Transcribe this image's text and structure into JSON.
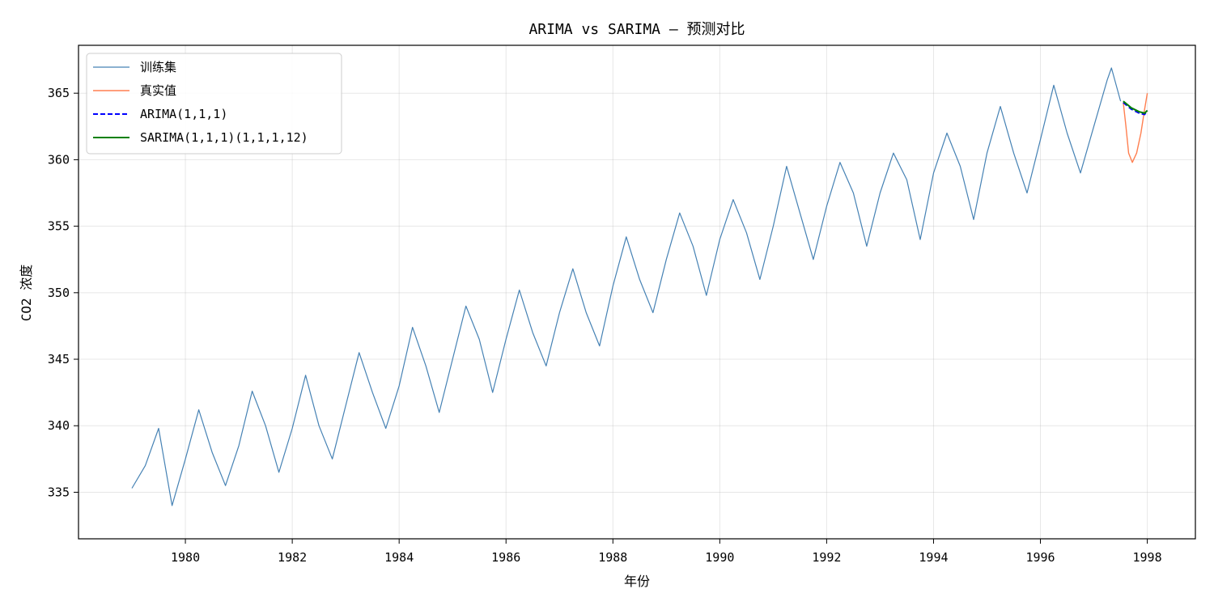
{
  "chart_data": {
    "type": "line",
    "title": "ARIMA vs SARIMA — 预测对比",
    "xlabel": "年份",
    "ylabel": "CO2 浓度",
    "xlim": [
      1978.0,
      1998.9
    ],
    "ylim": [
      331.5,
      368.6
    ],
    "xticks": [
      1980,
      1982,
      1984,
      1986,
      1988,
      1990,
      1992,
      1994,
      1996,
      1998
    ],
    "xtick_labels": [
      "1980",
      "1982",
      "1984",
      "1986",
      "1988",
      "1990",
      "1992",
      "1994",
      "1996",
      "1998"
    ],
    "yticks": [
      335,
      340,
      345,
      350,
      355,
      360,
      365
    ],
    "ytick_labels": [
      "335",
      "340",
      "345",
      "350",
      "355",
      "360",
      "365"
    ],
    "grid": true,
    "legend_position": "top-left",
    "x_unit": "year",
    "series": [
      {
        "name": "训练集",
        "color": "#4682b4",
        "style": "solid",
        "x": [
          1979.0,
          1979.25,
          1979.5,
          1979.75,
          1980.0,
          1980.25,
          1980.5,
          1980.75,
          1981.0,
          1981.25,
          1981.5,
          1981.75,
          1982.0,
          1982.25,
          1982.5,
          1982.75,
          1983.0,
          1983.25,
          1983.5,
          1983.75,
          1984.0,
          1984.25,
          1984.5,
          1984.75,
          1985.0,
          1985.25,
          1985.5,
          1985.75,
          1986.0,
          1986.25,
          1986.5,
          1986.75,
          1987.0,
          1987.25,
          1987.5,
          1987.75,
          1988.0,
          1988.25,
          1988.5,
          1988.75,
          1989.0,
          1989.25,
          1989.5,
          1989.75,
          1990.0,
          1990.25,
          1990.5,
          1990.75,
          1991.0,
          1991.25,
          1991.5,
          1991.75,
          1992.0,
          1992.25,
          1992.5,
          1992.75,
          1993.0,
          1993.25,
          1993.5,
          1993.75,
          1994.0,
          1994.25,
          1994.5,
          1994.75,
          1995.0,
          1995.25,
          1995.5,
          1995.75,
          1996.0,
          1996.25,
          1996.5,
          1996.75,
          1997.0,
          1997.25,
          1997.33,
          1997.5
        ],
        "y": [
          335.3,
          337.0,
          339.8,
          334.0,
          337.5,
          341.2,
          338.0,
          335.5,
          338.5,
          342.6,
          340.0,
          336.5,
          339.8,
          343.8,
          340.0,
          337.5,
          341.5,
          345.5,
          342.5,
          339.8,
          343.0,
          347.4,
          344.5,
          341.0,
          345.0,
          349.0,
          346.5,
          342.5,
          346.5,
          350.2,
          347.0,
          344.5,
          348.5,
          351.8,
          348.5,
          346.0,
          350.5,
          354.2,
          351.0,
          348.5,
          352.5,
          356.0,
          353.5,
          349.8,
          354.0,
          357.0,
          354.5,
          351.0,
          355.0,
          359.5,
          356.0,
          352.5,
          356.5,
          359.8,
          357.5,
          353.5,
          357.5,
          360.5,
          358.5,
          354.0,
          359.0,
          362.0,
          359.5,
          355.5,
          360.5,
          364.0,
          360.5,
          357.5,
          361.5,
          365.6,
          362.0,
          359.0,
          362.5,
          366.0,
          366.9,
          364.4
        ]
      },
      {
        "name": "真实值",
        "color": "#ff7f50",
        "style": "solid",
        "x": [
          1997.55,
          1997.6,
          1997.65,
          1997.72,
          1997.8,
          1997.88,
          1997.95,
          1998.0
        ],
        "y": [
          364.3,
          362.5,
          360.5,
          359.8,
          360.5,
          362.0,
          363.8,
          365.0
        ]
      },
      {
        "name": "ARIMA(1,1,1)",
        "color": "#0000ff",
        "style": "dashed",
        "x": [
          1997.55,
          1997.7,
          1997.85,
          1997.95,
          1998.0
        ],
        "y": [
          364.3,
          363.8,
          363.5,
          363.4,
          363.7
        ]
      },
      {
        "name": "SARIMA(1,1,1)(1,1,1,12)",
        "color": "#008000",
        "style": "solid",
        "x": [
          1997.55,
          1997.7,
          1997.85,
          1997.95,
          1998.0
        ],
        "y": [
          364.4,
          363.9,
          363.6,
          363.5,
          363.7
        ]
      }
    ]
  }
}
